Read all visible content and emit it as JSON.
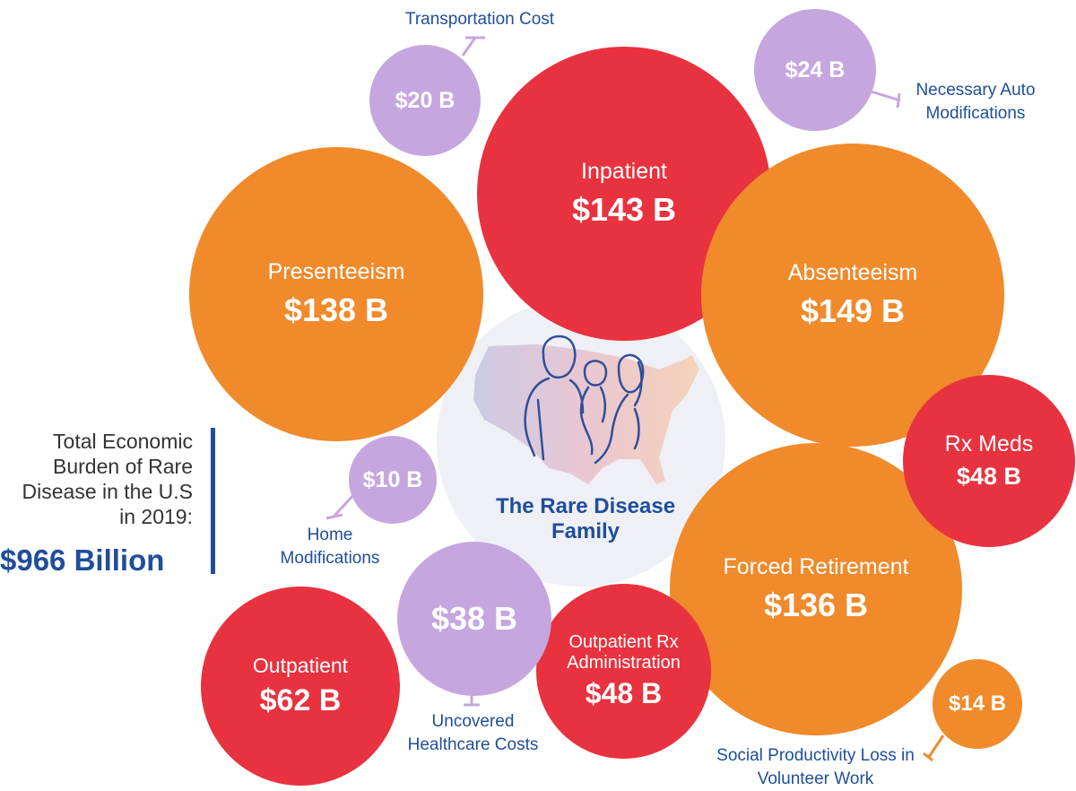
{
  "center": {
    "title": "The Rare Disease Family"
  },
  "total": {
    "label": "Total Economic Burden of Rare Disease in the U.S in 2019:",
    "value": "$966 Billion"
  },
  "bubbles": {
    "inpatient": {
      "label": "Inpatient",
      "value": "$143 B"
    },
    "presenteeism": {
      "label": "Presenteeism",
      "value": "$138 B"
    },
    "absenteeism": {
      "label": "Absenteeism",
      "value": "$149 B"
    },
    "rx_meds": {
      "label": "Rx Meds",
      "value": "$48 B"
    },
    "forced_retirement": {
      "label": "Forced Retirement",
      "value": "$136 B"
    },
    "outpatient": {
      "label": "Outpatient",
      "value": "$62 B"
    },
    "outpatient_rx": {
      "label": "Outpatient Rx Administration",
      "value": "$48 B"
    },
    "transportation": {
      "value": "$20 B",
      "callout": "Transportation Cost"
    },
    "auto_mods": {
      "value": "$24 B",
      "callout": "Necessary Auto Modifications"
    },
    "home_mods": {
      "value": "$10 B",
      "callout": "Home Modifications"
    },
    "uncovered": {
      "value": "$38 B",
      "callout": "Uncovered Healthcare Costs"
    },
    "volunteer": {
      "value": "$14 B",
      "callout": "Social Productivity Loss in Volunteer Work"
    }
  },
  "colors": {
    "healthcare": "#e8323f",
    "productivity": "#f08a2b",
    "non_medical": "#c6a6df",
    "accent": "#1f4e9a"
  },
  "icons": [
    "us-map-illustration",
    "family-line-art-icon"
  ]
}
